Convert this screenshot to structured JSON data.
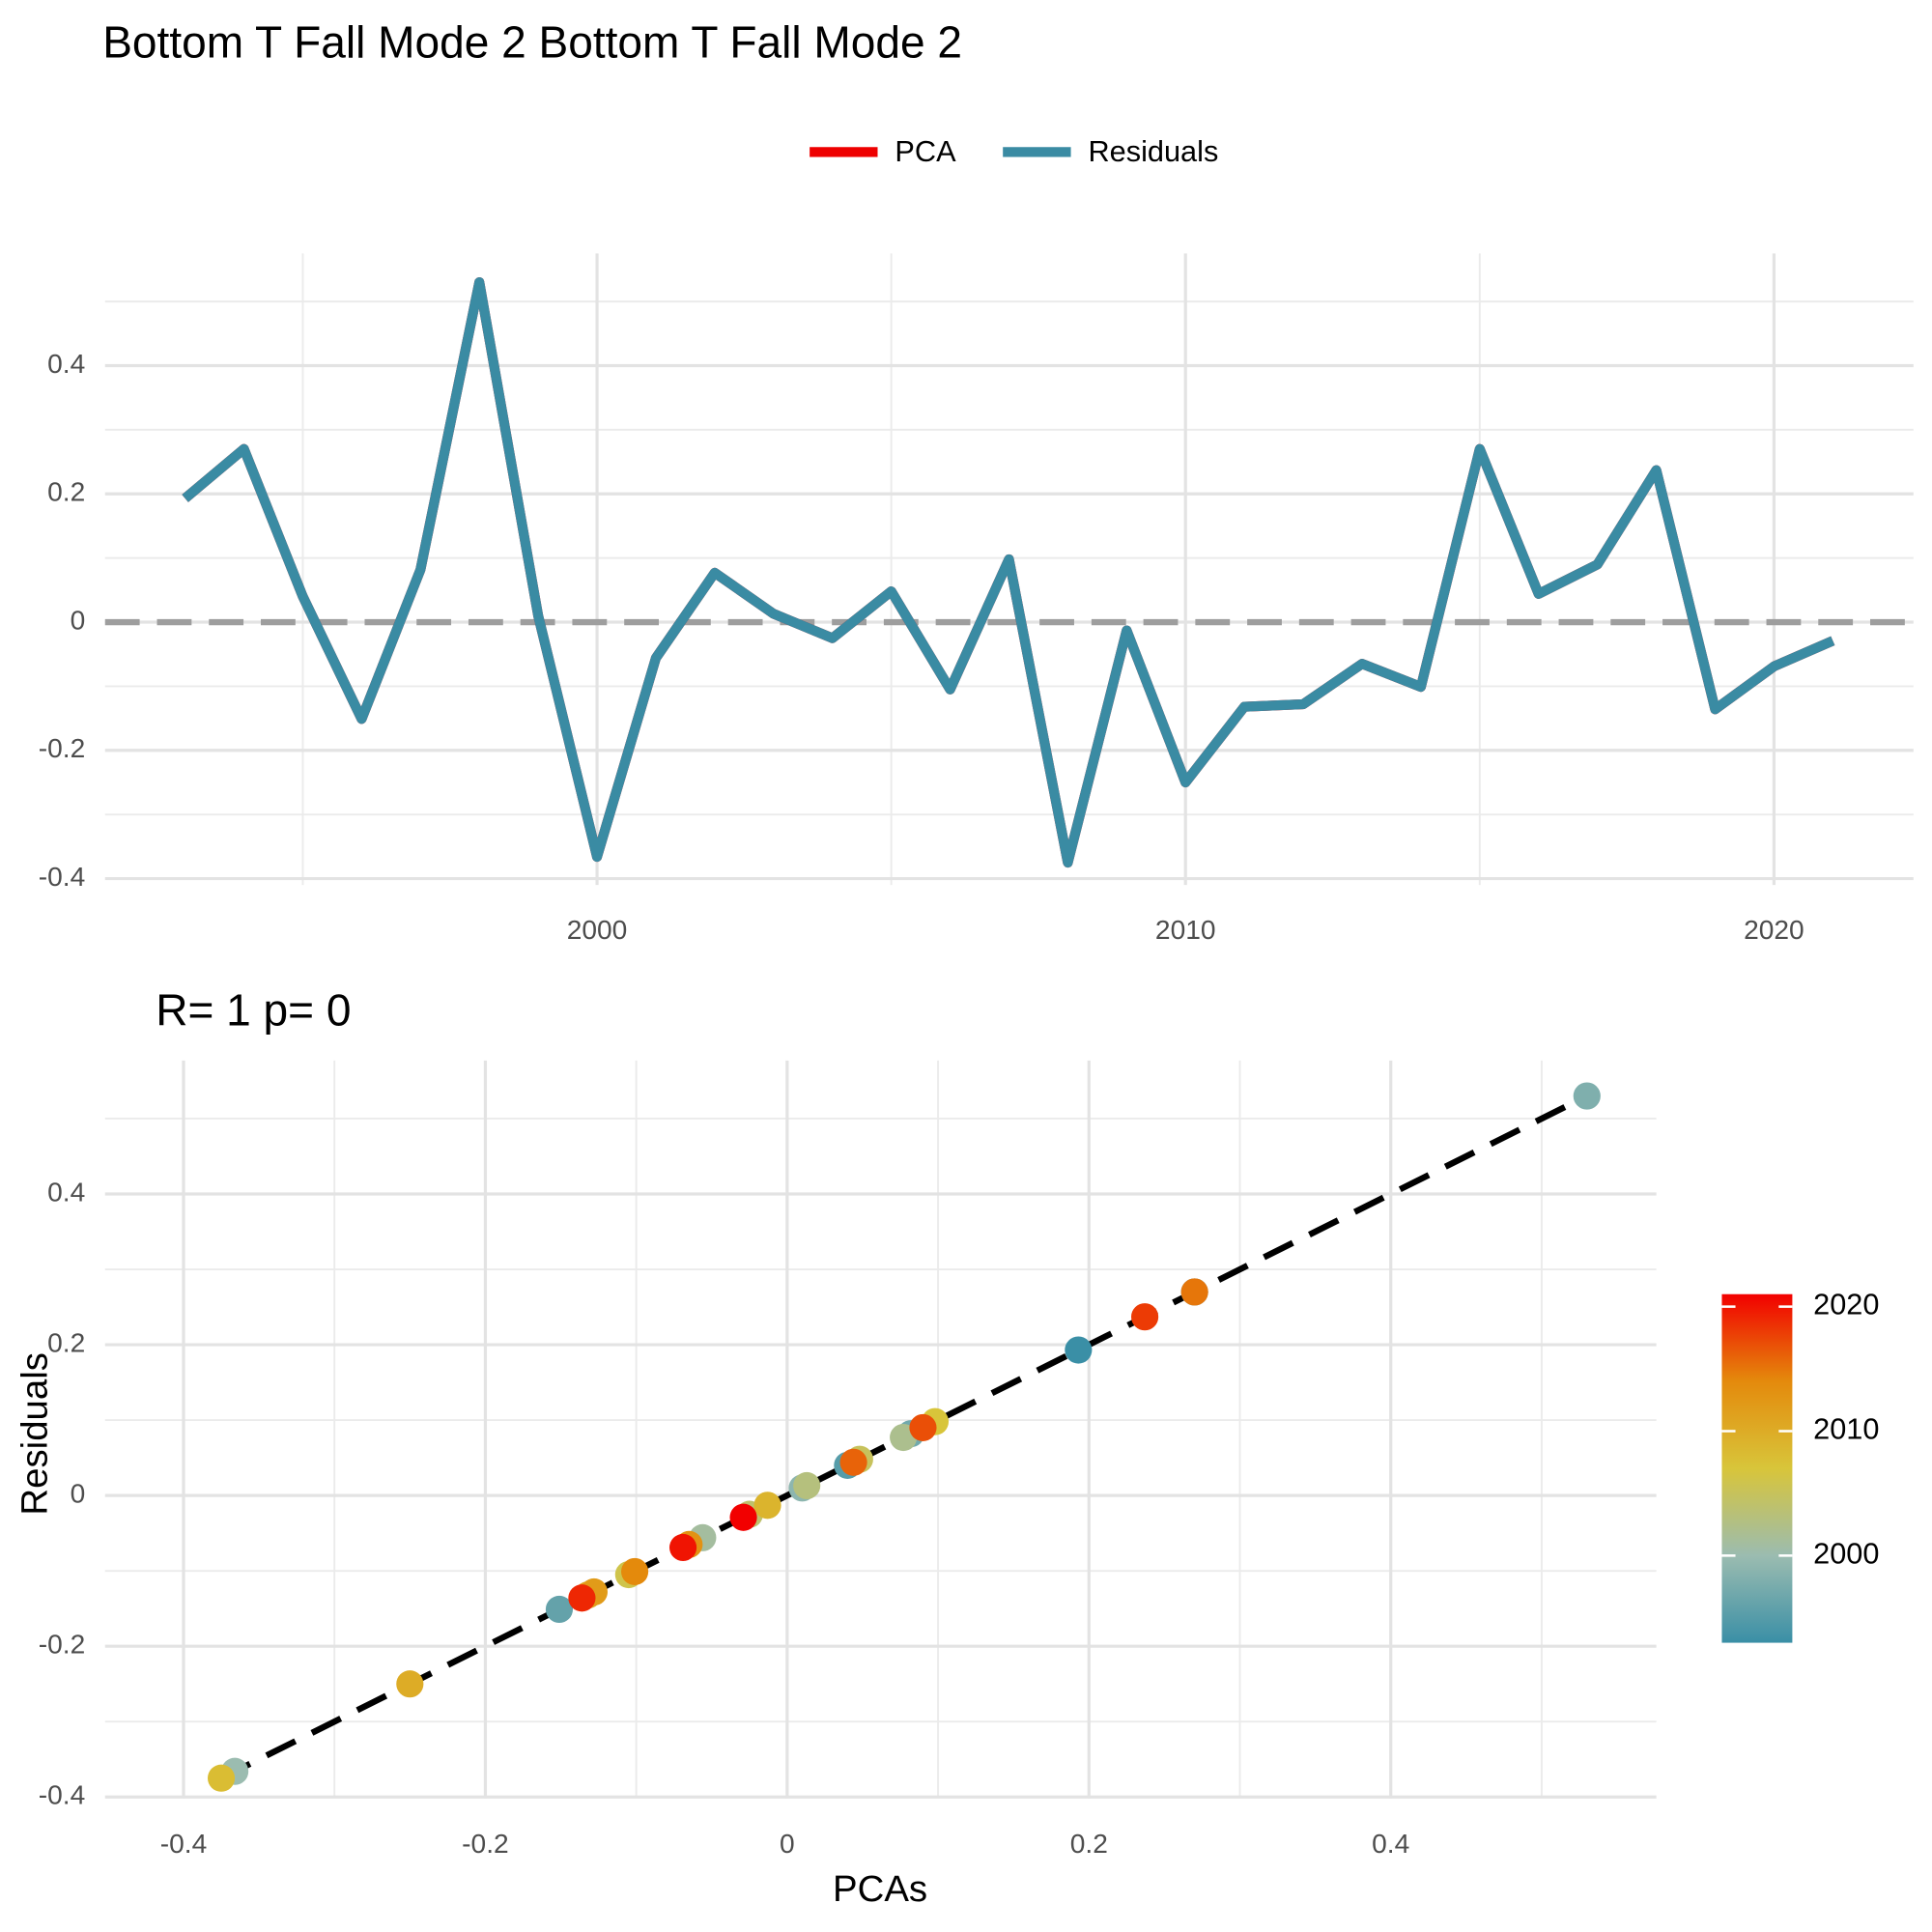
{
  "chart_data": [
    {
      "type": "line",
      "title": "Bottom T Fall Mode 2 Bottom T Fall Mode 2",
      "x": [
        1993,
        1994,
        1995,
        1996,
        1997,
        1998,
        1999,
        2000,
        2001,
        2002,
        2003,
        2004,
        2005,
        2006,
        2007,
        2008,
        2009,
        2010,
        2011,
        2012,
        2013,
        2014,
        2015,
        2016,
        2017,
        2018,
        2019,
        2020,
        2021
      ],
      "series": [
        {
          "name": "PCA",
          "color": "#ee0000",
          "values": [
            0.193,
            0.27,
            0.04,
            -0.151,
            0.082,
            0.53,
            0.01,
            -0.366,
            -0.056,
            0.077,
            0.013,
            -0.025,
            0.048,
            -0.105,
            0.098,
            -0.375,
            -0.013,
            -0.25,
            -0.132,
            -0.128,
            -0.065,
            -0.101,
            0.27,
            0.044,
            0.09,
            0.237,
            -0.136,
            -0.069,
            -0.029
          ]
        },
        {
          "name": "Residuals",
          "color": "#3a8ba3",
          "values": [
            0.193,
            0.27,
            0.04,
            -0.151,
            0.082,
            0.53,
            0.01,
            -0.366,
            -0.056,
            0.077,
            0.013,
            -0.025,
            0.048,
            -0.105,
            0.098,
            -0.375,
            -0.013,
            -0.25,
            -0.132,
            -0.128,
            -0.065,
            -0.101,
            0.27,
            0.044,
            0.09,
            0.237,
            -0.136,
            -0.069,
            -0.029
          ]
        }
      ],
      "xlim": [
        1991.64,
        2022.37
      ],
      "xticks": [
        2000,
        2010,
        2020
      ],
      "ylim": [
        -0.41,
        0.575
      ],
      "yticks": [
        -0.4,
        -0.2,
        0.0,
        0.2,
        0.4
      ],
      "hline": 0,
      "grid": true,
      "legend": "top"
    },
    {
      "type": "scatter",
      "subtitle": "R= 1  p= 0",
      "xlabel": "PCAs",
      "ylabel": "Residuals",
      "x": [
        0.193,
        0.27,
        0.04,
        -0.151,
        0.082,
        0.53,
        0.01,
        -0.366,
        -0.056,
        0.077,
        0.013,
        -0.025,
        0.048,
        -0.105,
        0.098,
        -0.375,
        -0.013,
        -0.25,
        -0.132,
        -0.128,
        -0.065,
        -0.101,
        0.27,
        0.044,
        0.09,
        0.237,
        -0.136,
        -0.069,
        -0.029
      ],
      "y": [
        0.193,
        0.27,
        0.04,
        -0.151,
        0.082,
        0.53,
        0.01,
        -0.366,
        -0.056,
        0.077,
        0.013,
        -0.025,
        0.048,
        -0.105,
        0.098,
        -0.375,
        -0.013,
        -0.25,
        -0.132,
        -0.128,
        -0.065,
        -0.101,
        0.27,
        0.044,
        0.09,
        0.237,
        -0.136,
        -0.069,
        -0.029
      ],
      "color_values": [
        1993,
        1994,
        1995,
        1996,
        1997,
        1998,
        1999,
        2000,
        2001,
        2002,
        2003,
        2004,
        2005,
        2006,
        2007,
        2008,
        2009,
        2010,
        2011,
        2012,
        2013,
        2014,
        2015,
        2016,
        2017,
        2018,
        2019,
        2020,
        2021
      ],
      "colorbar": {
        "limits": [
          1993,
          2021
        ],
        "ticks": [
          2000,
          2010,
          2020
        ],
        "colors": [
          "#3a8fa6",
          "#9bbcb0",
          "#d8c53a",
          "#e48a0c",
          "#f20000"
        ]
      },
      "xlim": [
        -0.452,
        0.576
      ],
      "xticks": [
        -0.4,
        -0.2,
        0.0,
        0.2,
        0.4
      ],
      "ylim": [
        -0.402,
        0.577
      ],
      "yticks": [
        -0.4,
        -0.2,
        0.0,
        0.2,
        0.4
      ],
      "fit_line": true,
      "grid": true
    }
  ]
}
